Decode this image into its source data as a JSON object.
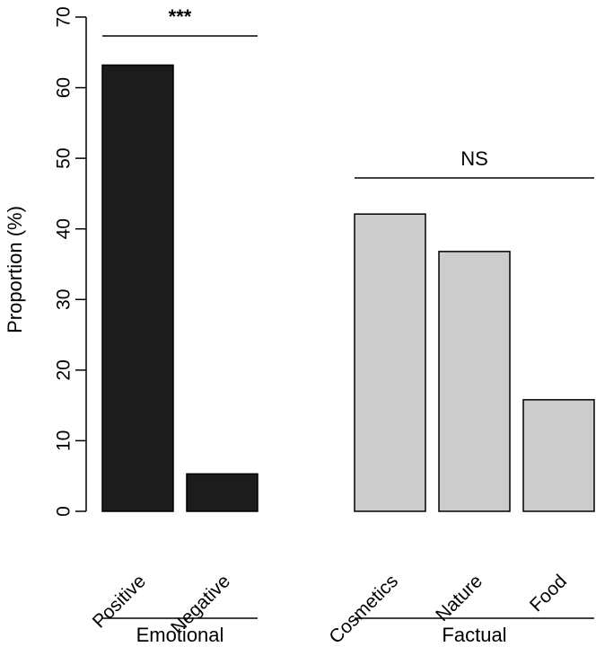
{
  "chart_data": {
    "type": "bar",
    "ylabel": "Proportion (%)",
    "ylim": [
      0,
      70
    ],
    "yticks": [
      0,
      10,
      20,
      30,
      40,
      50,
      60,
      70
    ],
    "grid": false,
    "groups": [
      {
        "name": "Emotional",
        "significance": "***",
        "color": "#1c1c1c",
        "categories": [
          "Positive",
          "Negative"
        ],
        "values": [
          63.2,
          5.3
        ]
      },
      {
        "name": "Factual",
        "significance": "NS",
        "color": "#cccccc",
        "categories": [
          "Cosmetics",
          "Nature",
          "Food"
        ],
        "values": [
          42.1,
          36.8,
          15.8
        ]
      }
    ]
  }
}
